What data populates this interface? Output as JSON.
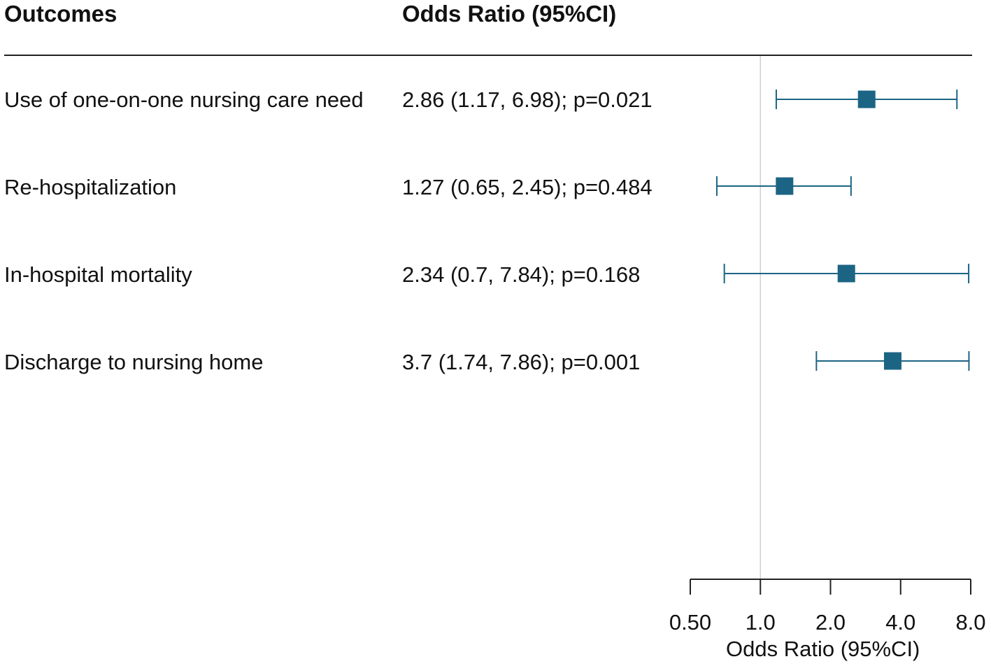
{
  "headers": {
    "outcomes": "Outcomes",
    "odds_ratio": "Odds Ratio (95%CI)"
  },
  "chart_data": {
    "type": "forest",
    "title": "",
    "xlabel": "Odds Ratio (95%CI)",
    "xscale": "log2",
    "xlim": [
      0.5,
      8.0
    ],
    "xticks": [
      0.5,
      1.0,
      2.0,
      4.0,
      8.0
    ],
    "xtick_labels": [
      "0.50",
      "1.0",
      "2.0",
      "4.0",
      "8.0"
    ],
    "reference_line": 1.0,
    "marker_color": "#1c6484",
    "rows": [
      {
        "label": "Use of one-on-one nursing care need",
        "text": "2.86 (1.17, 6.98); p=0.021",
        "or": 2.86,
        "lower": 1.17,
        "upper": 6.98
      },
      {
        "label": "Re-hospitalization",
        "text": "1.27 (0.65, 2.45); p=0.484",
        "or": 1.27,
        "lower": 0.65,
        "upper": 2.45
      },
      {
        "label": "In-hospital mortality",
        "text": "2.34 (0.7, 7.84); p=0.168",
        "or": 2.34,
        "lower": 0.7,
        "upper": 7.84
      },
      {
        "label": "Discharge to nursing home",
        "text": "3.7 (1.74, 7.86); p=0.001",
        "or": 3.7,
        "lower": 1.74,
        "upper": 7.86
      }
    ]
  }
}
